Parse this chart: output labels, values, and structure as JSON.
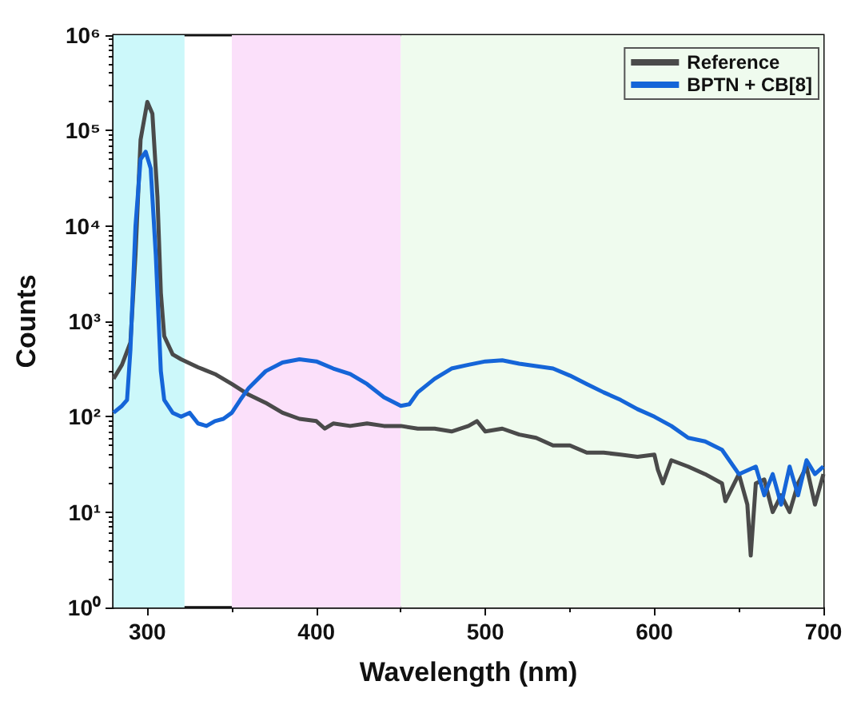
{
  "chart_data": {
    "type": "line",
    "xlabel": "Wavelength (nm)",
    "ylabel": "Counts",
    "log": "y",
    "grid": false,
    "legend": "top right",
    "marker": "none",
    "line_style": "solid",
    "xlim": [
      280,
      700
    ],
    "xticks": [
      300,
      400,
      500,
      600,
      700
    ],
    "ylim": [
      1,
      1000000
    ],
    "yticks": [
      {
        "value": 1,
        "label": "10⁰"
      },
      {
        "value": 10,
        "label": "10¹"
      },
      {
        "value": 100,
        "label": "10²"
      },
      {
        "value": 1000,
        "label": "10³"
      },
      {
        "value": 10000,
        "label": "10⁴"
      },
      {
        "value": 100000,
        "label": "10⁵"
      },
      {
        "value": 1000000,
        "label": "10⁶"
      }
    ],
    "bands": [
      {
        "axis": "x",
        "from": 280,
        "to": 322,
        "color": "#ccf8fa"
      },
      {
        "axis": "x",
        "from": 350,
        "to": 450,
        "color": "#fbe0fa"
      },
      {
        "axis": "x",
        "from": 450,
        "to": 700,
        "color": "#effbee"
      }
    ],
    "series": [
      {
        "name": "Reference",
        "color": "#4a4a4a",
        "x": [
          280,
          285,
          290,
          293,
          296,
          300,
          303,
          306,
          308,
          310,
          315,
          320,
          330,
          340,
          350,
          360,
          370,
          380,
          390,
          400,
          405,
          410,
          420,
          430,
          440,
          450,
          460,
          470,
          480,
          490,
          495,
          500,
          510,
          520,
          530,
          540,
          550,
          560,
          570,
          580,
          590,
          600,
          602,
          605,
          610,
          620,
          630,
          640,
          642,
          650,
          655,
          657,
          660,
          665,
          670,
          675,
          680,
          685,
          690,
          695,
          700
        ],
        "values": [
          250,
          350,
          600,
          5000,
          80000,
          200000,
          150000,
          20000,
          2000,
          700,
          450,
          400,
          330,
          280,
          220,
          170,
          140,
          110,
          95,
          90,
          75,
          85,
          80,
          85,
          80,
          80,
          75,
          75,
          70,
          80,
          90,
          70,
          75,
          65,
          60,
          50,
          50,
          42,
          42,
          40,
          38,
          40,
          28,
          20,
          35,
          30,
          25,
          20,
          13,
          25,
          12,
          3.5,
          20,
          22,
          10,
          15,
          10,
          20,
          30,
          12,
          25
        ]
      },
      {
        "name": "BPTN + CB[8]",
        "color": "#1565d8",
        "x": [
          280,
          285,
          288,
          290,
          293,
          296,
          299,
          302,
          305,
          308,
          310,
          315,
          320,
          325,
          330,
          335,
          340,
          345,
          350,
          355,
          360,
          370,
          380,
          390,
          400,
          410,
          420,
          430,
          440,
          450,
          455,
          460,
          470,
          480,
          490,
          500,
          510,
          520,
          530,
          540,
          550,
          560,
          570,
          580,
          590,
          600,
          610,
          620,
          630,
          640,
          650,
          660,
          665,
          670,
          675,
          680,
          685,
          690,
          695,
          700
        ],
        "values": [
          110,
          130,
          150,
          500,
          10000,
          50000,
          60000,
          40000,
          5000,
          300,
          150,
          110,
          100,
          110,
          85,
          80,
          90,
          95,
          110,
          150,
          200,
          300,
          370,
          400,
          380,
          320,
          280,
          220,
          160,
          130,
          135,
          180,
          250,
          320,
          350,
          380,
          390,
          360,
          340,
          320,
          270,
          220,
          180,
          150,
          120,
          100,
          80,
          60,
          55,
          45,
          25,
          30,
          15,
          25,
          12,
          30,
          15,
          35,
          25,
          30
        ]
      }
    ]
  }
}
